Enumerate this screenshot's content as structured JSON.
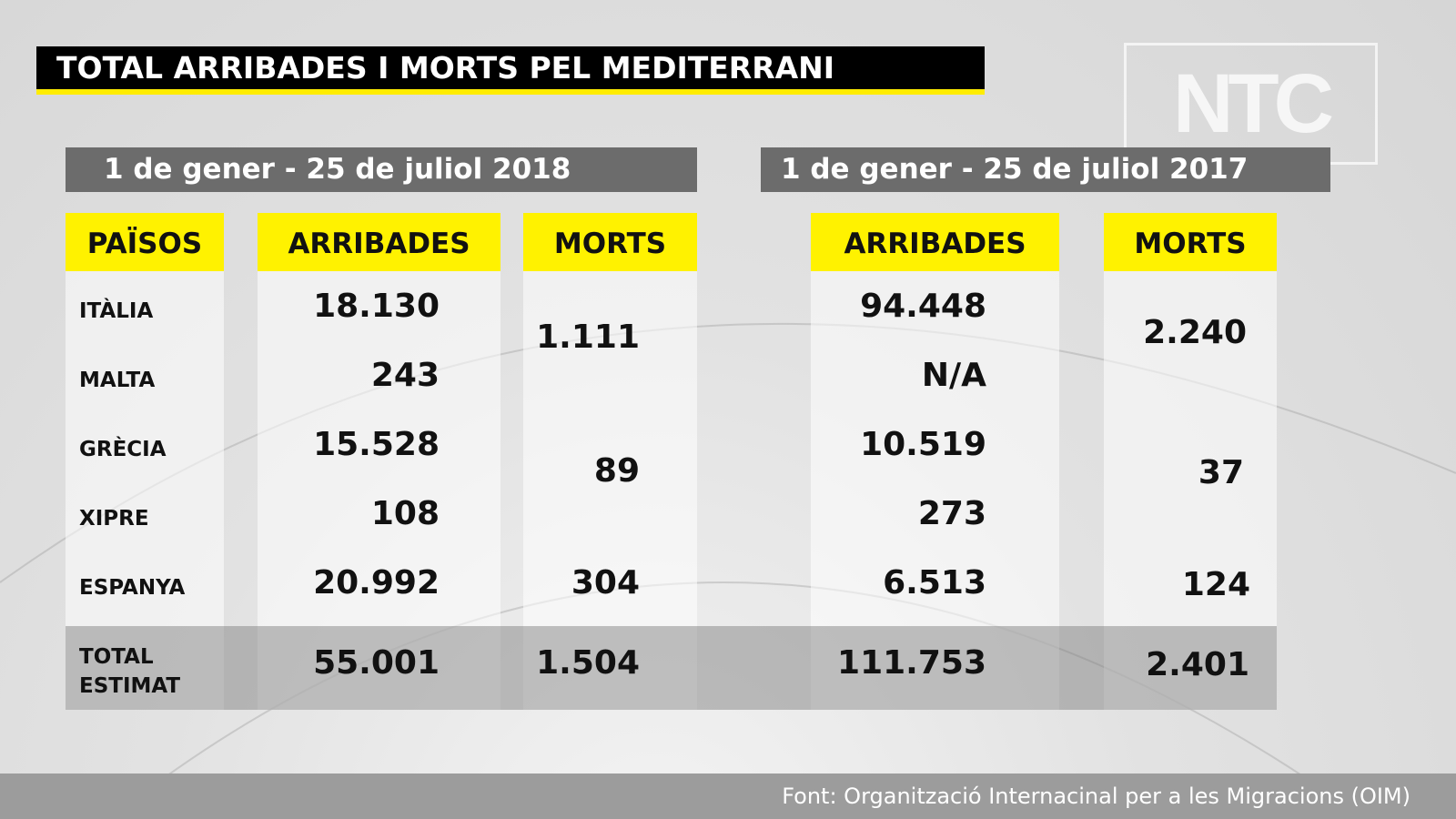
{
  "title": "TOTAL ARRIBADES I MORTS PEL MEDITERRANI",
  "logo": "NTC",
  "periods": [
    "1 de gener - 25 de juliol 2018",
    "1 de gener - 25 de juliol 2017"
  ],
  "headers": {
    "countries": "PAÏSOS",
    "arrivals": "ARRIBADES",
    "deaths": "MORTS"
  },
  "colors": {
    "title_bg": "#000000",
    "accent": "#fff200",
    "period_bg": "#6c6c6c"
  },
  "chart_data": {
    "type": "table",
    "title": "TOTAL ARRIBADES I MORTS PEL MEDITERRANI",
    "columns": [
      "PAÏSOS",
      "ARRIBADES 2018",
      "MORTS 2018",
      "ARRIBADES 2017",
      "MORTS 2017"
    ],
    "rows": [
      {
        "country": "ITÀLIA",
        "arrivals_2018": "18.130",
        "arrivals_2017": "94.448"
      },
      {
        "country": "MALTA",
        "arrivals_2018": "243",
        "arrivals_2017": "N/A"
      },
      {
        "country": "GRÈCIA",
        "arrivals_2018": "15.528",
        "arrivals_2017": "10.519"
      },
      {
        "country": "XIPRE",
        "arrivals_2018": "108",
        "arrivals_2017": "273"
      },
      {
        "country": "ESPANYA",
        "arrivals_2018": "20.992",
        "arrivals_2017": "6.513"
      }
    ],
    "deaths_groups": [
      {
        "countries": [
          "ITÀLIA",
          "MALTA"
        ],
        "deaths_2018": "1.111",
        "deaths_2017": "2.240"
      },
      {
        "countries": [
          "GRÈCIA",
          "XIPRE"
        ],
        "deaths_2018": "89",
        "deaths_2017": "37"
      },
      {
        "countries": [
          "ESPANYA"
        ],
        "deaths_2018": "304",
        "deaths_2017": "124"
      }
    ],
    "total": {
      "label_1": "TOTAL",
      "label_2": "ESTIMAT",
      "arrivals_2018": "55.001",
      "deaths_2018": "1.504",
      "arrivals_2017": "111.753",
      "deaths_2017": "2.401"
    }
  },
  "source": "Font: Organització Internacinal per a les Migracions (OIM)"
}
